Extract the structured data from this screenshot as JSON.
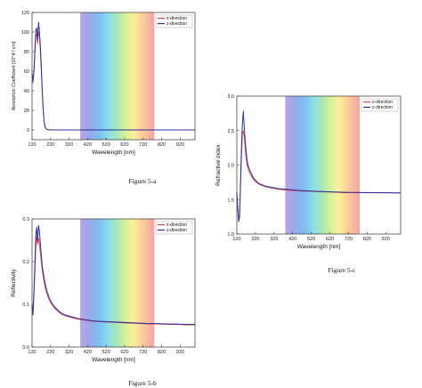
{
  "chart_data": [
    {
      "id": "a",
      "type": "line",
      "caption": "Figure 5-a",
      "xlabel": "Wavelength [nm]",
      "ylabel": "Absorption Coefficient [10^4 / cm]",
      "xlim": [
        120,
        1000
      ],
      "ylim": [
        -10,
        120
      ],
      "xticks": [
        120,
        220,
        320,
        420,
        520,
        620,
        720,
        820,
        920
      ],
      "yticks": [
        0,
        20,
        40,
        60,
        80,
        100,
        120
      ],
      "ytick_labels": [
        "0",
        "20",
        "40",
        "60",
        "80",
        "100",
        "120"
      ],
      "visible_band": [
        380,
        780
      ],
      "legend_position": "top-right",
      "series": [
        {
          "name": "x-direction",
          "color": "#e0474c",
          "x": [
            120,
            125,
            130,
            135,
            140,
            145,
            150,
            155,
            160,
            165,
            170,
            175,
            180,
            185,
            190,
            195,
            200,
            205,
            210,
            215,
            220,
            240,
            260,
            300,
            400,
            600,
            800,
            1000
          ],
          "y": [
            55,
            48,
            58,
            75,
            95,
            98,
            88,
            100,
            96,
            80,
            60,
            38,
            20,
            8,
            3,
            1.2,
            0.5,
            0.3,
            0.2,
            0.1,
            0.1,
            0,
            0,
            0,
            0,
            0,
            0,
            0
          ]
        },
        {
          "name": "z-direction",
          "color": "#2a2fa0",
          "x": [
            120,
            125,
            130,
            135,
            140,
            145,
            150,
            155,
            160,
            165,
            170,
            175,
            180,
            185,
            190,
            195,
            200,
            205,
            210,
            215,
            220,
            240,
            260,
            300,
            400,
            600,
            800,
            1000
          ],
          "y": [
            58,
            50,
            60,
            80,
            102,
            104,
            92,
            110,
            100,
            85,
            65,
            40,
            22,
            9,
            3.5,
            1.4,
            0.6,
            0.3,
            0.2,
            0.1,
            0.1,
            0,
            0,
            0,
            0,
            0,
            0,
            0
          ]
        }
      ]
    },
    {
      "id": "b",
      "type": "line",
      "caption": "Figure 5-b",
      "xlabel": "Wavelength [nm]",
      "ylabel": "Reflectivity",
      "xlim": [
        120,
        1000
      ],
      "ylim": [
        0,
        0.3
      ],
      "xticks": [
        120,
        220,
        320,
        420,
        520,
        620,
        720,
        820,
        920
      ],
      "yticks": [
        0,
        0.1,
        0.2,
        0.3
      ],
      "ytick_labels": [
        "0.0",
        "0.1",
        "0.2",
        "0.3"
      ],
      "visible_band": [
        380,
        780
      ],
      "legend_position": "top-right",
      "series": [
        {
          "name": "x-direction",
          "color": "#e0474c",
          "x": [
            120,
            125,
            130,
            135,
            140,
            145,
            150,
            155,
            160,
            165,
            170,
            175,
            180,
            190,
            200,
            210,
            220,
            240,
            260,
            280,
            300,
            340,
            380,
            420,
            460,
            500,
            550,
            600,
            650,
            700,
            750,
            800,
            850,
            900,
            950,
            1000
          ],
          "y": [
            0.1,
            0.08,
            0.12,
            0.17,
            0.23,
            0.26,
            0.24,
            0.255,
            0.24,
            0.22,
            0.2,
            0.18,
            0.165,
            0.14,
            0.125,
            0.113,
            0.104,
            0.092,
            0.083,
            0.077,
            0.073,
            0.068,
            0.064,
            0.062,
            0.06,
            0.059,
            0.058,
            0.057,
            0.056,
            0.055,
            0.054,
            0.054,
            0.053,
            0.053,
            0.052,
            0.052
          ]
        },
        {
          "name": "z-direction",
          "color": "#2a2fa0",
          "x": [
            120,
            125,
            130,
            135,
            140,
            145,
            150,
            155,
            160,
            165,
            170,
            175,
            180,
            190,
            200,
            210,
            220,
            240,
            260,
            280,
            300,
            340,
            380,
            420,
            460,
            500,
            550,
            600,
            650,
            700,
            750,
            800,
            850,
            900,
            950,
            1000
          ],
          "y": [
            0.1,
            0.075,
            0.13,
            0.19,
            0.26,
            0.28,
            0.25,
            0.285,
            0.27,
            0.24,
            0.215,
            0.19,
            0.175,
            0.15,
            0.132,
            0.118,
            0.108,
            0.095,
            0.086,
            0.079,
            0.075,
            0.07,
            0.066,
            0.063,
            0.061,
            0.06,
            0.059,
            0.058,
            0.057,
            0.056,
            0.055,
            0.055,
            0.054,
            0.054,
            0.053,
            0.053
          ]
        }
      ]
    },
    {
      "id": "c",
      "type": "line",
      "caption": "Figure 5-c",
      "xlabel": "Wavelength [nm]",
      "ylabel": "Refractive index",
      "xlim": [
        120,
        1000
      ],
      "ylim": [
        1.0,
        3.0
      ],
      "xticks": [
        120,
        220,
        320,
        420,
        520,
        620,
        720,
        820,
        920
      ],
      "yticks": [
        1.0,
        1.5,
        2.0,
        2.5,
        3.0
      ],
      "ytick_labels": [
        "1.0",
        "1.5",
        "2.0",
        "2.5",
        "3.0"
      ],
      "visible_band": [
        380,
        780
      ],
      "legend_position": "top-right",
      "series": [
        {
          "name": "x-direction",
          "color": "#e0474c",
          "x": [
            120,
            125,
            130,
            135,
            140,
            145,
            150,
            155,
            160,
            165,
            170,
            175,
            180,
            190,
            200,
            210,
            220,
            240,
            260,
            280,
            300,
            340,
            380,
            420,
            460,
            500,
            550,
            600,
            650,
            700,
            750,
            800,
            850,
            900,
            950,
            1000
          ],
          "y": [
            1.55,
            1.35,
            1.2,
            1.3,
            1.7,
            2.1,
            2.45,
            2.5,
            2.4,
            2.25,
            2.1,
            2.0,
            1.95,
            1.88,
            1.83,
            1.79,
            1.76,
            1.72,
            1.7,
            1.68,
            1.67,
            1.65,
            1.64,
            1.63,
            1.625,
            1.62,
            1.615,
            1.61,
            1.605,
            1.6,
            1.6,
            1.6,
            1.598,
            1.597,
            1.596,
            1.595
          ]
        },
        {
          "name": "z-direction",
          "color": "#2a2fa0",
          "x": [
            120,
            125,
            130,
            135,
            140,
            145,
            150,
            155,
            160,
            165,
            170,
            175,
            180,
            190,
            200,
            210,
            220,
            240,
            260,
            280,
            300,
            340,
            380,
            420,
            460,
            500,
            550,
            600,
            650,
            700,
            750,
            800,
            850,
            900,
            950,
            1000
          ],
          "y": [
            1.6,
            1.4,
            1.18,
            1.25,
            1.75,
            2.25,
            2.6,
            2.78,
            2.55,
            2.35,
            2.2,
            2.07,
            2.0,
            1.92,
            1.86,
            1.81,
            1.78,
            1.73,
            1.71,
            1.69,
            1.68,
            1.66,
            1.65,
            1.64,
            1.63,
            1.625,
            1.62,
            1.615,
            1.61,
            1.605,
            1.603,
            1.602,
            1.6,
            1.6,
            1.598,
            1.597
          ]
        }
      ]
    }
  ]
}
